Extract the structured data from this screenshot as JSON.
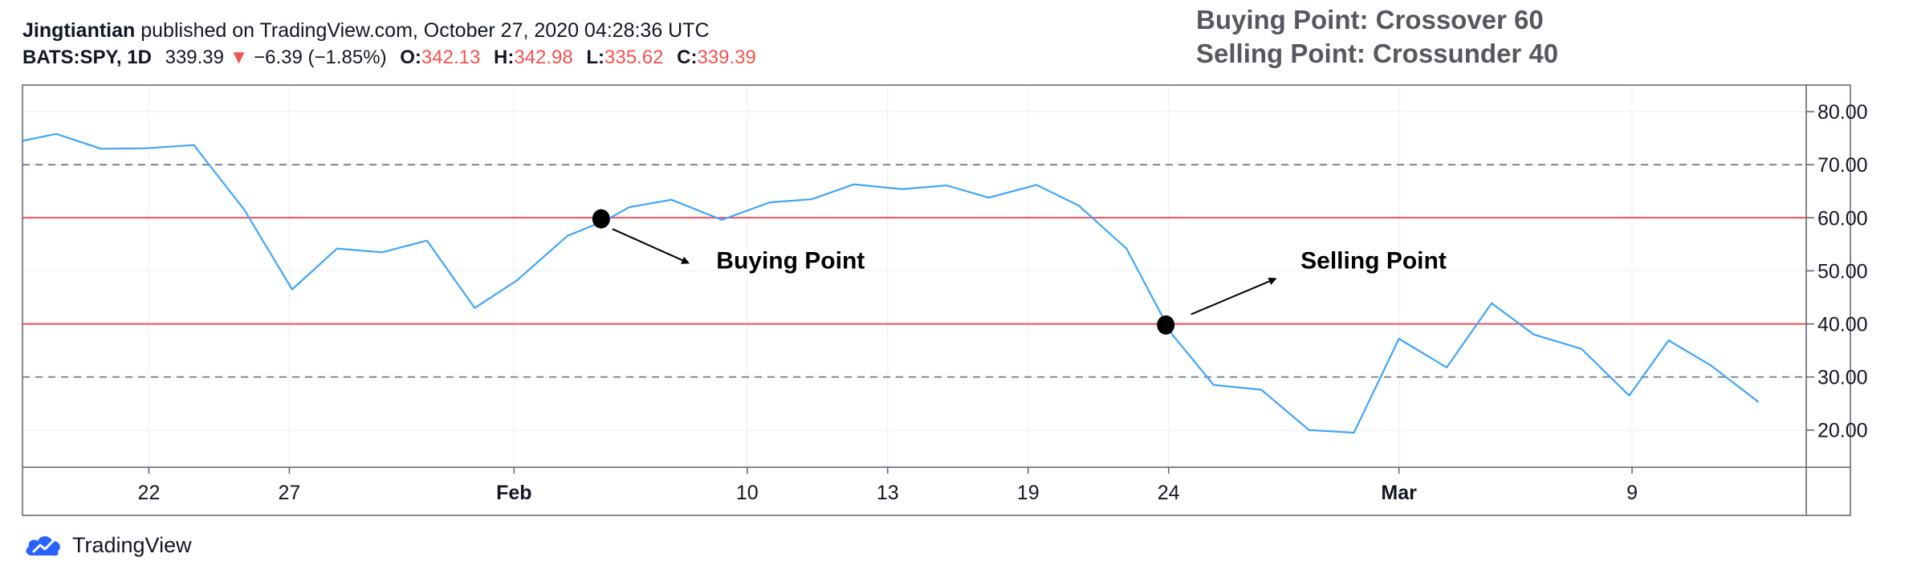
{
  "header": {
    "author": "Jingtiantian",
    "published": "published on TradingView.com, October 27, 2020 04:28:36 UTC",
    "symbol": "BATS:SPY, 1D",
    "last": "339.39",
    "down_arrow": "▼",
    "change": "−6.39 (−1.85%)",
    "o_label": "O:",
    "o_value": "342.13",
    "h_label": "H:",
    "h_value": "342.98",
    "l_label": "L:",
    "l_value": "335.62",
    "c_label": "C:",
    "c_value": "339.39"
  },
  "notes": {
    "buy_rule": "Buying Point: Crossover 60",
    "sell_rule": "Selling Point: Crossunder 40"
  },
  "footer": {
    "brand": "TradingView",
    "logo_icon": "tradingview-cloud-icon"
  },
  "colors": {
    "line": "#42a5f5",
    "level": "#f23645",
    "dash": "#787b86",
    "grid": "#f0f3fa",
    "axis": "#787b86"
  },
  "chart_data": {
    "type": "line",
    "ylim": [
      13,
      85
    ],
    "yticks": [
      20,
      30,
      40,
      50,
      60,
      70,
      80
    ],
    "ytick_labels": [
      "20.00",
      "30.00",
      "40.00",
      "50.00",
      "60.00",
      "70.00",
      "80.00"
    ],
    "xlim": [
      0,
      63.5
    ],
    "xticks": [
      {
        "x": 4.5,
        "label": "22",
        "bold": false
      },
      {
        "x": 9.5,
        "label": "27",
        "bold": false
      },
      {
        "x": 17.5,
        "label": "Feb",
        "bold": true
      },
      {
        "x": 25.8,
        "label": "10",
        "bold": false
      },
      {
        "x": 30.8,
        "label": "13",
        "bold": false
      },
      {
        "x": 35.8,
        "label": "19",
        "bold": false
      },
      {
        "x": 40.8,
        "label": "24",
        "bold": false
      },
      {
        "x": 49,
        "label": "Mar",
        "bold": true
      },
      {
        "x": 57.3,
        "label": "9",
        "bold": false
      }
    ],
    "series": [
      {
        "x": [
          0,
          1.2,
          2.8,
          4.4,
          6.1,
          7.9,
          9.6,
          11.2,
          12.8,
          14.4,
          16.1,
          17.6,
          19.4,
          20.8,
          21.6,
          23.1,
          24.9,
          26.6,
          28.1,
          29.6,
          31.3,
          32.9,
          34.4,
          36.1,
          37.6,
          39.3,
          40.9,
          42.4,
          44.1,
          45.8,
          47.4,
          49.0,
          50.7,
          52.3,
          53.8,
          55.5,
          57.2,
          58.6,
          60.1,
          61.8
        ],
        "values": [
          74.5,
          75.8,
          73.0,
          73.1,
          73.7,
          61.5,
          46.5,
          54.2,
          53.5,
          55.7,
          43.0,
          48.2,
          56.6,
          59.6,
          62.0,
          63.4,
          59.6,
          62.9,
          63.5,
          66.3,
          65.4,
          66.1,
          63.8,
          66.2,
          62.3,
          54.2,
          38.2,
          28.5,
          27.6,
          20.0,
          19.5,
          37.2,
          31.8,
          43.9,
          38.0,
          35.3,
          26.5,
          36.9,
          32.2,
          25.3
        ]
      }
    ],
    "levels": [
      {
        "value": 60,
        "style": "solid"
      },
      {
        "value": 40,
        "style": "solid"
      },
      {
        "value": 70,
        "style": "dashed"
      },
      {
        "value": 30,
        "style": "dashed"
      }
    ],
    "markers": [
      {
        "x": 20.6,
        "value": 59.8,
        "label": "Buying Point",
        "tail": [
          21.0,
          57.9
        ],
        "head": [
          23.7,
          51.5
        ],
        "text_at": [
          24.7,
          50.4
        ]
      },
      {
        "x": 40.7,
        "value": 39.8,
        "label": "Selling Point",
        "tail": [
          41.6,
          41.8
        ],
        "head": [
          44.6,
          48.5
        ],
        "text_at": [
          45.5,
          50.4
        ]
      }
    ]
  }
}
